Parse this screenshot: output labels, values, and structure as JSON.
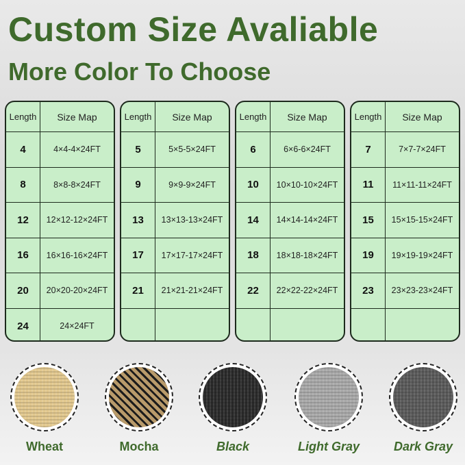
{
  "header": {
    "title": "Custom Size Avaliable",
    "subtitle": "More Color To Choose"
  },
  "table_headers": {
    "length": "Length",
    "size_map": "Size Map"
  },
  "tables": [
    [
      [
        "4",
        "4×4-4×24FT"
      ],
      [
        "8",
        "8×8-8×24FT"
      ],
      [
        "12",
        "12×12-12×24FT"
      ],
      [
        "16",
        "16×16-16×24FT"
      ],
      [
        "20",
        "20×20-20×24FT"
      ],
      [
        "24",
        "24×24FT"
      ]
    ],
    [
      [
        "5",
        "5×5-5×24FT"
      ],
      [
        "9",
        "9×9-9×24FT"
      ],
      [
        "13",
        "13×13-13×24FT"
      ],
      [
        "17",
        "17×17-17×24FT"
      ],
      [
        "21",
        "21×21-21×24FT"
      ],
      [
        "",
        ""
      ]
    ],
    [
      [
        "6",
        "6×6-6×24FT"
      ],
      [
        "10",
        "10×10-10×24FT"
      ],
      [
        "14",
        "14×14-14×24FT"
      ],
      [
        "18",
        "18×18-18×24FT"
      ],
      [
        "22",
        "22×22-22×24FT"
      ],
      [
        "",
        ""
      ]
    ],
    [
      [
        "7",
        "7×7-7×24FT"
      ],
      [
        "11",
        "11×11-11×24FT"
      ],
      [
        "15",
        "15×15-15×24FT"
      ],
      [
        "19",
        "19×19-19×24FT"
      ],
      [
        "23",
        "23×23-23×24FT"
      ],
      [
        "",
        ""
      ]
    ]
  ],
  "colors": [
    {
      "name": "Wheat",
      "swatch": "#e2c88e",
      "italic": false
    },
    {
      "name": "Mocha",
      "swatch": "#b89a6a",
      "italic": false
    },
    {
      "name": "Black",
      "swatch": "#2a2a2a",
      "italic": true
    },
    {
      "name": "Light Gray",
      "swatch": "#a9a9a9",
      "italic": true
    },
    {
      "name": "Dark Gray",
      "swatch": "#5a5a5a",
      "italic": true
    }
  ],
  "accent": "#3f6a2c"
}
